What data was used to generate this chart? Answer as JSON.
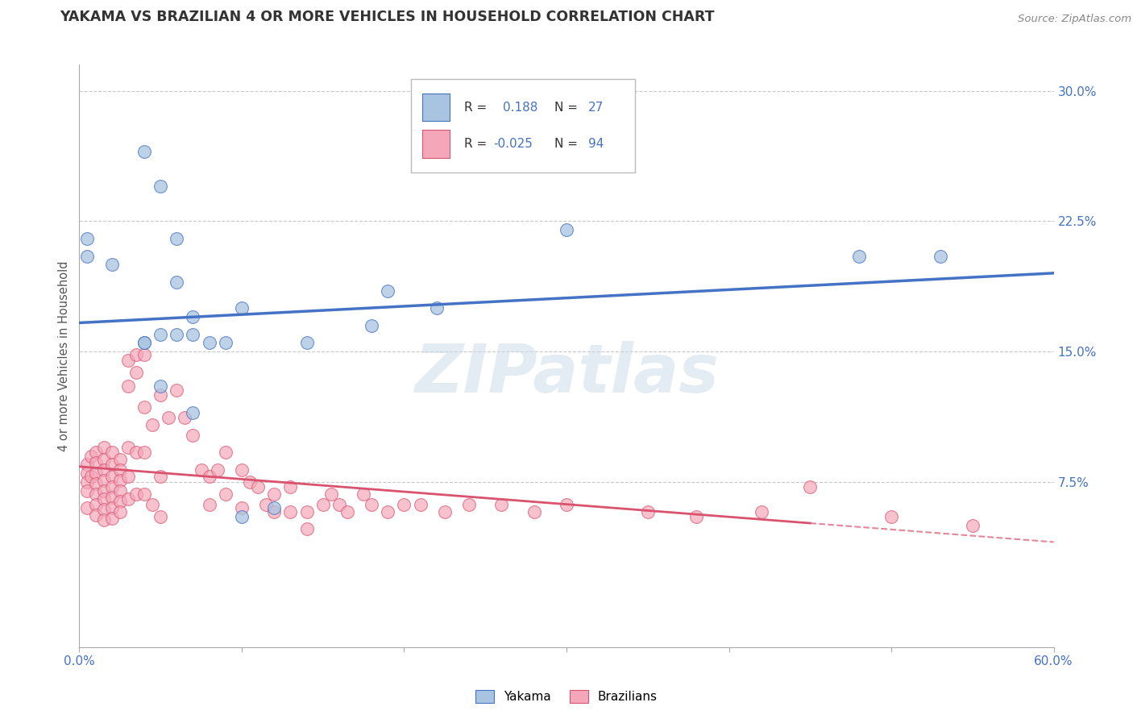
{
  "title": "YAKAMA VS BRAZILIAN 4 OR MORE VEHICLES IN HOUSEHOLD CORRELATION CHART",
  "source_text": "Source: ZipAtlas.com",
  "ylabel": "4 or more Vehicles in Household",
  "xlim": [
    0.0,
    0.6
  ],
  "ylim": [
    -0.02,
    0.315
  ],
  "xticks": [
    0.0,
    0.1,
    0.2,
    0.3,
    0.4,
    0.5,
    0.6
  ],
  "xticklabels": [
    "0.0%",
    "",
    "",
    "",
    "",
    "",
    "60.0%"
  ],
  "yticks_right": [
    0.075,
    0.15,
    0.225,
    0.3
  ],
  "ytick_right_labels": [
    "7.5%",
    "15.0%",
    "22.5%",
    "30.0%"
  ],
  "yakama_color": "#a8c4e0",
  "yakama_line_color": "#4472c4",
  "brazilian_color": "#f4a7b9",
  "brazilian_line_color": "#d9536f",
  "watermark": "ZIPatlas",
  "background_color": "#ffffff",
  "grid_color": "#c8c8c8",
  "title_color": "#333333",
  "legend_text_color": "#4472c4",
  "yakama_scatter_x": [
    0.005,
    0.005,
    0.02,
    0.04,
    0.05,
    0.06,
    0.07,
    0.04,
    0.05,
    0.06,
    0.07,
    0.08,
    0.09,
    0.1,
    0.14,
    0.18,
    0.19,
    0.22,
    0.3,
    0.48,
    0.05,
    0.07,
    0.1,
    0.12,
    0.04,
    0.06,
    0.53
  ],
  "yakama_scatter_y": [
    0.205,
    0.215,
    0.2,
    0.265,
    0.245,
    0.215,
    0.17,
    0.155,
    0.16,
    0.19,
    0.16,
    0.155,
    0.155,
    0.175,
    0.155,
    0.165,
    0.185,
    0.175,
    0.22,
    0.205,
    0.13,
    0.115,
    0.055,
    0.06,
    0.155,
    0.16,
    0.205
  ],
  "brazilian_scatter_x": [
    0.005,
    0.005,
    0.005,
    0.005,
    0.005,
    0.007,
    0.007,
    0.01,
    0.01,
    0.01,
    0.01,
    0.01,
    0.01,
    0.01,
    0.015,
    0.015,
    0.015,
    0.015,
    0.015,
    0.015,
    0.015,
    0.015,
    0.02,
    0.02,
    0.02,
    0.02,
    0.02,
    0.02,
    0.02,
    0.025,
    0.025,
    0.025,
    0.025,
    0.025,
    0.025,
    0.03,
    0.03,
    0.03,
    0.03,
    0.03,
    0.035,
    0.035,
    0.035,
    0.035,
    0.04,
    0.04,
    0.04,
    0.04,
    0.045,
    0.045,
    0.05,
    0.05,
    0.05,
    0.055,
    0.06,
    0.065,
    0.07,
    0.075,
    0.08,
    0.08,
    0.085,
    0.09,
    0.09,
    0.1,
    0.1,
    0.105,
    0.11,
    0.115,
    0.12,
    0.12,
    0.13,
    0.13,
    0.14,
    0.14,
    0.15,
    0.155,
    0.16,
    0.165,
    0.175,
    0.18,
    0.19,
    0.2,
    0.21,
    0.225,
    0.24,
    0.26,
    0.28,
    0.3,
    0.35,
    0.38,
    0.42,
    0.45,
    0.5,
    0.55
  ],
  "brazilian_scatter_y": [
    0.085,
    0.08,
    0.075,
    0.07,
    0.06,
    0.09,
    0.078,
    0.092,
    0.086,
    0.08,
    0.074,
    0.068,
    0.062,
    0.056,
    0.095,
    0.088,
    0.082,
    0.076,
    0.07,
    0.065,
    0.059,
    0.053,
    0.092,
    0.085,
    0.078,
    0.072,
    0.066,
    0.06,
    0.054,
    0.088,
    0.082,
    0.076,
    0.07,
    0.064,
    0.058,
    0.145,
    0.13,
    0.095,
    0.078,
    0.065,
    0.148,
    0.138,
    0.092,
    0.068,
    0.148,
    0.118,
    0.092,
    0.068,
    0.108,
    0.062,
    0.125,
    0.078,
    0.055,
    0.112,
    0.128,
    0.112,
    0.102,
    0.082,
    0.078,
    0.062,
    0.082,
    0.092,
    0.068,
    0.082,
    0.06,
    0.075,
    0.072,
    0.062,
    0.068,
    0.058,
    0.072,
    0.058,
    0.058,
    0.048,
    0.062,
    0.068,
    0.062,
    0.058,
    0.068,
    0.062,
    0.058,
    0.062,
    0.062,
    0.058,
    0.062,
    0.062,
    0.058,
    0.062,
    0.058,
    0.055,
    0.058,
    0.072,
    0.055,
    0.05
  ]
}
